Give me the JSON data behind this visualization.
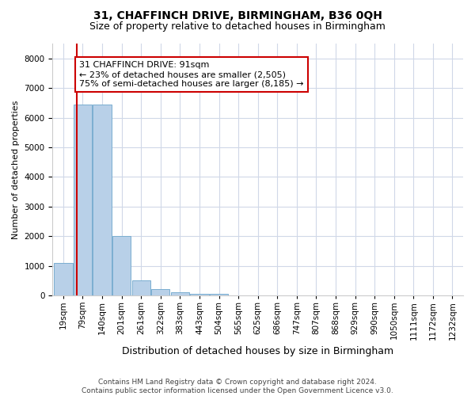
{
  "title1": "31, CHAFFINCH DRIVE, BIRMINGHAM, B36 0QH",
  "title2": "Size of property relative to detached houses in Birmingham",
  "xlabel": "Distribution of detached houses by size in Birmingham",
  "ylabel": "Number of detached properties",
  "bar_categories": [
    "19sqm",
    "79sqm",
    "140sqm",
    "201sqm",
    "261sqm",
    "322sqm",
    "383sqm",
    "443sqm",
    "504sqm",
    "565sqm",
    "625sqm",
    "686sqm",
    "747sqm",
    "807sqm",
    "868sqm",
    "929sqm",
    "990sqm",
    "1050sqm",
    "1111sqm",
    "1172sqm",
    "1232sqm"
  ],
  "bar_values": [
    1100,
    6450,
    6450,
    2000,
    520,
    220,
    110,
    60,
    40,
    0,
    0,
    0,
    0,
    0,
    0,
    0,
    0,
    0,
    0,
    0,
    0
  ],
  "bar_color": "#b8d0e8",
  "bar_edgecolor": "#7aaed0",
  "annotation_text_line1": "31 CHAFFINCH DRIVE: 91sqm",
  "annotation_text_line2": "← 23% of detached houses are smaller (2,505)",
  "annotation_text_line3": "75% of semi-detached houses are larger (8,185) →",
  "annotation_box_color": "#ffffff",
  "annotation_box_edgecolor": "#cc0000",
  "red_line_color": "#cc0000",
  "red_line_x": 0.72,
  "ylim": [
    0,
    8500
  ],
  "yticks": [
    0,
    1000,
    2000,
    3000,
    4000,
    5000,
    6000,
    7000,
    8000
  ],
  "footer1": "Contains HM Land Registry data © Crown copyright and database right 2024.",
  "footer2": "Contains public sector information licensed under the Open Government Licence v3.0.",
  "bg_color": "#ffffff",
  "grid_color": "#d0d8e8",
  "title1_fontsize": 10,
  "title2_fontsize": 9,
  "ylabel_fontsize": 8,
  "xlabel_fontsize": 9,
  "tick_fontsize": 7.5,
  "footer_fontsize": 6.5,
  "annotation_fontsize": 8
}
